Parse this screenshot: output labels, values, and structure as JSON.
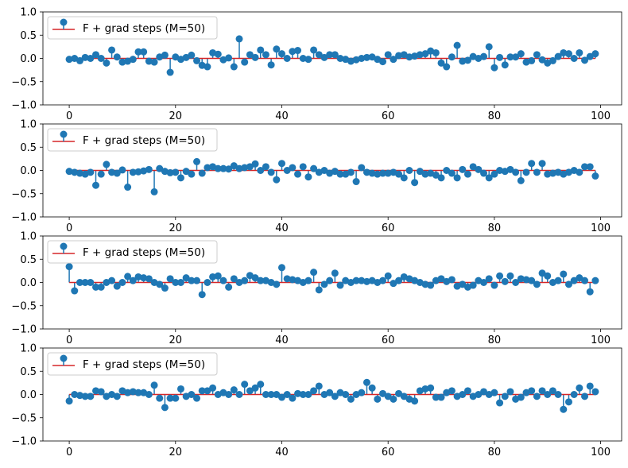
{
  "figure": {
    "background": "#ffffff",
    "stem_color": "#1f77b4",
    "marker_color": "#1f77b4",
    "baseline_color": "#d62728",
    "axis_color": "#000000"
  },
  "chart_data": [
    {
      "type": "stem",
      "xlim": [
        -4.95,
        103.95
      ],
      "ylim": [
        -1.0,
        1.0
      ],
      "x_ticks": [
        0,
        20,
        40,
        60,
        80,
        100
      ],
      "y_ticks": [
        -1.0,
        -0.5,
        0.0,
        0.5,
        1.0
      ],
      "x_tick_labels": [
        "0",
        "20",
        "40",
        "60",
        "80",
        "100"
      ],
      "y_tick_labels": [
        "−1.0",
        "−0.5",
        "0.0",
        "0.5",
        "1.0"
      ],
      "legend": {
        "label": "F + grad steps (M=50)",
        "loc": "upper-left"
      },
      "baseline": 0,
      "x": [
        0,
        1,
        2,
        3,
        4,
        5,
        6,
        7,
        8,
        9,
        10,
        11,
        12,
        13,
        14,
        15,
        16,
        17,
        18,
        19,
        20,
        21,
        22,
        23,
        24,
        25,
        26,
        27,
        28,
        29,
        30,
        31,
        32,
        33,
        34,
        35,
        36,
        37,
        38,
        39,
        40,
        41,
        42,
        43,
        44,
        45,
        46,
        47,
        48,
        49,
        50,
        51,
        52,
        53,
        54,
        55,
        56,
        57,
        58,
        59,
        60,
        61,
        62,
        63,
        64,
        65,
        66,
        67,
        68,
        69,
        70,
        71,
        72,
        73,
        74,
        75,
        76,
        77,
        78,
        79,
        80,
        81,
        82,
        83,
        84,
        85,
        86,
        87,
        88,
        89,
        90,
        91,
        92,
        93,
        94,
        95,
        96,
        97,
        98,
        99
      ],
      "y": [
        -0.02,
        0.0,
        -0.05,
        0.02,
        0.0,
        0.08,
        0.0,
        -0.1,
        0.18,
        0.03,
        -0.08,
        -0.06,
        -0.02,
        0.14,
        0.14,
        -0.06,
        -0.08,
        0.03,
        0.07,
        -0.3,
        0.03,
        -0.02,
        0.02,
        0.07,
        -0.05,
        -0.15,
        -0.18,
        0.12,
        0.09,
        -0.03,
        0.01,
        -0.18,
        0.42,
        -0.08,
        0.08,
        0.02,
        0.18,
        0.08,
        -0.14,
        0.2,
        0.1,
        0.0,
        0.15,
        0.17,
        0.0,
        -0.02,
        0.18,
        0.08,
        0.02,
        0.08,
        0.08,
        0.0,
        -0.02,
        -0.06,
        -0.03,
        0.0,
        0.02,
        0.03,
        -0.02,
        -0.07,
        0.08,
        -0.02,
        0.06,
        0.08,
        0.03,
        0.05,
        0.08,
        0.1,
        0.16,
        0.12,
        -0.1,
        -0.18,
        0.03,
        0.28,
        -0.06,
        -0.04,
        0.04,
        0.0,
        0.04,
        0.25,
        -0.2,
        0.02,
        -0.14,
        0.03,
        0.03,
        0.1,
        -0.08,
        -0.05,
        0.08,
        -0.03,
        -0.1,
        -0.05,
        0.04,
        0.12,
        0.1,
        0.0,
        0.12,
        -0.04,
        0.04,
        0.1
      ]
    },
    {
      "type": "stem",
      "xlim": [
        -4.95,
        103.95
      ],
      "ylim": [
        -1.0,
        1.0
      ],
      "x_ticks": [
        0,
        20,
        40,
        60,
        80,
        100
      ],
      "y_ticks": [
        -1.0,
        -0.5,
        0.0,
        0.5,
        1.0
      ],
      "x_tick_labels": [
        "0",
        "20",
        "40",
        "60",
        "80",
        "100"
      ],
      "y_tick_labels": [
        "−1.0",
        "−0.5",
        "0.0",
        "0.5",
        "1.0"
      ],
      "legend": {
        "label": "F + grad steps (M=50)",
        "loc": "upper-left"
      },
      "baseline": 0,
      "x": [
        0,
        1,
        2,
        3,
        4,
        5,
        6,
        7,
        8,
        9,
        10,
        11,
        12,
        13,
        14,
        15,
        16,
        17,
        18,
        19,
        20,
        21,
        22,
        23,
        24,
        25,
        26,
        27,
        28,
        29,
        30,
        31,
        32,
        33,
        34,
        35,
        36,
        37,
        38,
        39,
        40,
        41,
        42,
        43,
        44,
        45,
        46,
        47,
        48,
        49,
        50,
        51,
        52,
        53,
        54,
        55,
        56,
        57,
        58,
        59,
        60,
        61,
        62,
        63,
        64,
        65,
        66,
        67,
        68,
        69,
        70,
        71,
        72,
        73,
        74,
        75,
        76,
        77,
        78,
        79,
        80,
        81,
        82,
        83,
        84,
        85,
        86,
        87,
        88,
        89,
        90,
        91,
        92,
        93,
        94,
        95,
        96,
        97,
        98,
        99
      ],
      "y": [
        -0.02,
        -0.04,
        -0.06,
        -0.08,
        -0.04,
        -0.32,
        -0.08,
        0.13,
        -0.04,
        -0.06,
        0.01,
        -0.36,
        -0.04,
        -0.03,
        -0.01,
        0.02,
        -0.46,
        0.04,
        -0.02,
        -0.05,
        -0.04,
        -0.16,
        -0.02,
        -0.08,
        0.19,
        -0.06,
        0.06,
        0.08,
        0.04,
        0.04,
        0.03,
        0.1,
        0.04,
        0.06,
        0.08,
        0.14,
        0.0,
        0.08,
        -0.04,
        -0.2,
        0.15,
        0.0,
        0.06,
        -0.08,
        0.08,
        -0.14,
        0.04,
        -0.04,
        0.0,
        -0.06,
        -0.02,
        -0.08,
        -0.08,
        -0.04,
        -0.24,
        0.06,
        -0.04,
        -0.06,
        -0.08,
        -0.06,
        -0.06,
        -0.04,
        -0.08,
        -0.16,
        0.0,
        -0.26,
        -0.02,
        -0.08,
        -0.06,
        -0.1,
        -0.16,
        0.0,
        -0.06,
        -0.16,
        0.02,
        -0.08,
        0.08,
        0.02,
        -0.06,
        -0.16,
        -0.08,
        0.0,
        -0.02,
        0.02,
        -0.04,
        -0.22,
        -0.04,
        0.15,
        -0.04,
        0.15,
        -0.08,
        -0.06,
        -0.04,
        -0.08,
        -0.04,
        0.0,
        -0.04,
        0.08,
        0.08,
        -0.12
      ]
    },
    {
      "type": "stem",
      "xlim": [
        -4.95,
        103.95
      ],
      "ylim": [
        -1.0,
        1.0
      ],
      "x_ticks": [
        0,
        20,
        40,
        60,
        80,
        100
      ],
      "y_ticks": [
        -1.0,
        -0.5,
        0.0,
        0.5,
        1.0
      ],
      "x_tick_labels": [
        "0",
        "20",
        "40",
        "60",
        "80",
        "100"
      ],
      "y_tick_labels": [
        "−1.0",
        "−0.5",
        "0.0",
        "0.5",
        "1.0"
      ],
      "legend": {
        "label": "F + grad steps (M=50)",
        "loc": "upper-left"
      },
      "baseline": 0,
      "x": [
        0,
        1,
        2,
        3,
        4,
        5,
        6,
        7,
        8,
        9,
        10,
        11,
        12,
        13,
        14,
        15,
        16,
        17,
        18,
        19,
        20,
        21,
        22,
        23,
        24,
        25,
        26,
        27,
        28,
        29,
        30,
        31,
        32,
        33,
        34,
        35,
        36,
        37,
        38,
        39,
        40,
        41,
        42,
        43,
        44,
        45,
        46,
        47,
        48,
        49,
        50,
        51,
        52,
        53,
        54,
        55,
        56,
        57,
        58,
        59,
        60,
        61,
        62,
        63,
        64,
        65,
        66,
        67,
        68,
        69,
        70,
        71,
        72,
        73,
        74,
        75,
        76,
        77,
        78,
        79,
        80,
        81,
        82,
        83,
        84,
        85,
        86,
        87,
        88,
        89,
        90,
        91,
        92,
        93,
        94,
        95,
        96,
        97,
        98,
        99
      ],
      "y": [
        0.34,
        -0.18,
        0.0,
        0.0,
        0.0,
        -0.1,
        -0.1,
        0.0,
        0.04,
        -0.08,
        0.0,
        0.13,
        0.04,
        0.12,
        0.1,
        0.08,
        0.0,
        -0.04,
        -0.12,
        0.08,
        0.0,
        0.0,
        0.1,
        0.04,
        0.04,
        -0.26,
        0.0,
        0.12,
        0.14,
        0.04,
        -0.1,
        0.08,
        0.0,
        0.04,
        0.15,
        0.1,
        0.04,
        0.04,
        0.0,
        -0.04,
        0.32,
        0.08,
        0.06,
        0.04,
        0.0,
        0.04,
        0.22,
        -0.16,
        -0.04,
        0.04,
        0.2,
        -0.06,
        0.04,
        0.0,
        0.04,
        0.04,
        0.02,
        0.04,
        0.0,
        0.04,
        0.14,
        -0.02,
        0.04,
        0.12,
        0.08,
        0.04,
        0.0,
        -0.04,
        -0.06,
        0.04,
        0.08,
        0.02,
        0.06,
        -0.08,
        -0.04,
        -0.1,
        -0.06,
        0.04,
        0.0,
        0.08,
        -0.06,
        0.14,
        0.02,
        0.14,
        0.0,
        0.08,
        0.06,
        0.04,
        -0.04,
        0.2,
        0.14,
        0.0,
        0.04,
        0.18,
        -0.04,
        0.04,
        0.1,
        0.04,
        -0.2,
        0.04
      ]
    },
    {
      "type": "stem",
      "xlim": [
        -4.95,
        103.95
      ],
      "ylim": [
        -1.0,
        1.0
      ],
      "x_ticks": [
        0,
        20,
        40,
        60,
        80,
        100
      ],
      "y_ticks": [
        -1.0,
        -0.5,
        0.0,
        0.5,
        1.0
      ],
      "x_tick_labels": [
        "0",
        "20",
        "40",
        "60",
        "80",
        "100"
      ],
      "y_tick_labels": [
        "−1.0",
        "−0.5",
        "0.0",
        "0.5",
        "1.0"
      ],
      "legend": {
        "label": "F + grad steps (M=50)",
        "loc": "upper-left"
      },
      "baseline": 0,
      "x": [
        0,
        1,
        2,
        3,
        4,
        5,
        6,
        7,
        8,
        9,
        10,
        11,
        12,
        13,
        14,
        15,
        16,
        17,
        18,
        19,
        20,
        21,
        22,
        23,
        24,
        25,
        26,
        27,
        28,
        29,
        30,
        31,
        32,
        33,
        34,
        35,
        36,
        37,
        38,
        39,
        40,
        41,
        42,
        43,
        44,
        45,
        46,
        47,
        48,
        49,
        50,
        51,
        52,
        53,
        54,
        55,
        56,
        57,
        58,
        59,
        60,
        61,
        62,
        63,
        64,
        65,
        66,
        67,
        68,
        69,
        70,
        71,
        72,
        73,
        74,
        75,
        76,
        77,
        78,
        79,
        80,
        81,
        82,
        83,
        84,
        85,
        86,
        87,
        88,
        89,
        90,
        91,
        92,
        93,
        94,
        95,
        96,
        97,
        98,
        99
      ],
      "y": [
        -0.14,
        0.0,
        -0.02,
        -0.04,
        -0.04,
        0.08,
        0.06,
        -0.04,
        0.0,
        -0.04,
        0.08,
        0.04,
        0.06,
        0.04,
        0.04,
        0.0,
        0.2,
        -0.08,
        -0.28,
        -0.08,
        -0.08,
        0.12,
        -0.04,
        0.0,
        -0.08,
        0.08,
        0.08,
        0.14,
        0.0,
        0.04,
        0.0,
        0.1,
        0.0,
        0.22,
        0.08,
        0.14,
        0.22,
        0.0,
        0.0,
        0.0,
        -0.06,
        0.0,
        -0.08,
        0.02,
        0.0,
        0.0,
        0.08,
        0.18,
        0.0,
        0.04,
        -0.04,
        0.04,
        0.0,
        -0.1,
        0.0,
        0.04,
        0.26,
        0.14,
        -0.1,
        0.02,
        -0.04,
        -0.1,
        0.02,
        -0.04,
        -0.1,
        -0.14,
        0.08,
        0.12,
        0.14,
        -0.06,
        -0.06,
        0.04,
        0.08,
        -0.04,
        0.0,
        0.08,
        -0.04,
        0.0,
        0.06,
        0.0,
        0.04,
        -0.18,
        -0.04,
        0.06,
        -0.1,
        -0.06,
        0.04,
        0.08,
        -0.04,
        0.08,
        0.0,
        0.08,
        0.0,
        -0.32,
        -0.16,
        0.0,
        0.14,
        -0.04,
        0.18,
        0.06
      ]
    }
  ]
}
